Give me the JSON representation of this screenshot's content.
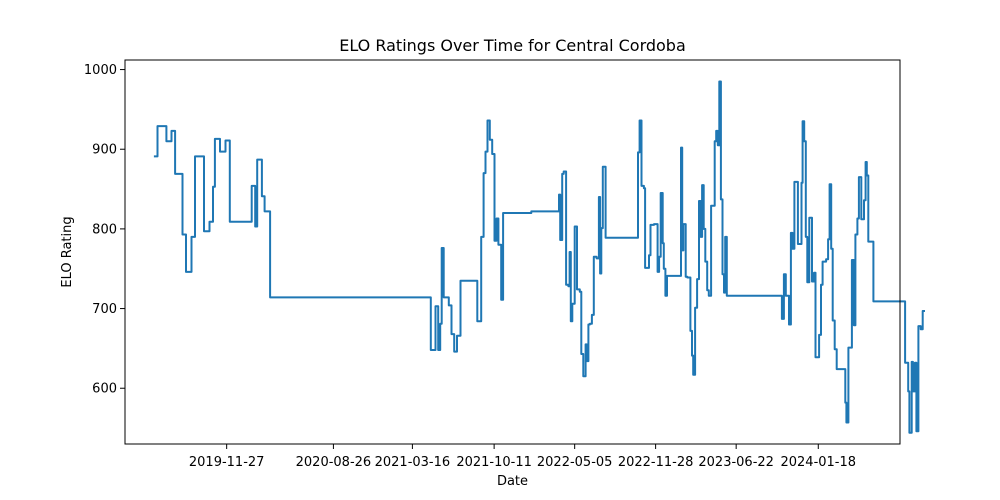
{
  "chart_data": {
    "type": "line",
    "title": "ELO Ratings Over Time for Central Cordoba",
    "xlabel": "Date",
    "ylabel": "ELO Rating",
    "x_tick_labels": [
      "2019-11-27",
      "2020-08-26",
      "2021-03-16",
      "2021-10-11",
      "2022-05-05",
      "2022-11-28",
      "2023-06-22",
      "2024-01-18"
    ],
    "y_ticks": [
      600,
      700,
      800,
      900,
      1000
    ],
    "ylim": [
      530,
      1012
    ],
    "xlim_days": [
      -260,
      1722
    ],
    "grid": false,
    "line_color": "#1f77b4",
    "series": [
      {
        "name": "Central Cordoba",
        "points": [
          [
            -186,
            891
          ],
          [
            -177,
            891
          ],
          [
            -177,
            929
          ],
          [
            -154,
            929
          ],
          [
            -154,
            910
          ],
          [
            -141,
            910
          ],
          [
            -141,
            923
          ],
          [
            -132,
            923
          ],
          [
            -132,
            869
          ],
          [
            -113,
            869
          ],
          [
            -113,
            793
          ],
          [
            -104,
            793
          ],
          [
            -104,
            746
          ],
          [
            -90,
            746
          ],
          [
            -90,
            790
          ],
          [
            -81,
            790
          ],
          [
            -81,
            891
          ],
          [
            -58,
            891
          ],
          [
            -58,
            797
          ],
          [
            -44,
            797
          ],
          [
            -44,
            809
          ],
          [
            -35,
            809
          ],
          [
            -35,
            853
          ],
          [
            -30,
            853
          ],
          [
            -30,
            913
          ],
          [
            -17,
            913
          ],
          [
            -17,
            897
          ],
          [
            -3,
            897
          ],
          [
            -3,
            911
          ],
          [
            8,
            911
          ],
          [
            8,
            809
          ],
          [
            64,
            809
          ],
          [
            64,
            854
          ],
          [
            73,
            854
          ],
          [
            73,
            803
          ],
          [
            78,
            803
          ],
          [
            78,
            887
          ],
          [
            90,
            887
          ],
          [
            90,
            841
          ],
          [
            97,
            841
          ],
          [
            97,
            822
          ],
          [
            111,
            822
          ],
          [
            111,
            714
          ],
          [
            522,
            714
          ],
          [
            522,
            648
          ],
          [
            534,
            648
          ],
          [
            534,
            703
          ],
          [
            541,
            703
          ],
          [
            541,
            648
          ],
          [
            546,
            648
          ],
          [
            546,
            681
          ],
          [
            550,
            681
          ],
          [
            550,
            776
          ],
          [
            555,
            776
          ],
          [
            555,
            714
          ],
          [
            568,
            714
          ],
          [
            568,
            704
          ],
          [
            575,
            704
          ],
          [
            575,
            668
          ],
          [
            582,
            668
          ],
          [
            582,
            646
          ],
          [
            589,
            646
          ],
          [
            589,
            666
          ],
          [
            598,
            666
          ],
          [
            598,
            735
          ],
          [
            641,
            735
          ],
          [
            641,
            684
          ],
          [
            651,
            684
          ],
          [
            651,
            790
          ],
          [
            657,
            790
          ],
          [
            657,
            870
          ],
          [
            662,
            870
          ],
          [
            662,
            897
          ],
          [
            667,
            897
          ],
          [
            667,
            936
          ],
          [
            673,
            936
          ],
          [
            673,
            912
          ],
          [
            679,
            912
          ],
          [
            679,
            894
          ],
          [
            685,
            894
          ],
          [
            685,
            785
          ],
          [
            690,
            785
          ],
          [
            690,
            813
          ],
          [
            695,
            813
          ],
          [
            695,
            780
          ],
          [
            702,
            780
          ],
          [
            702,
            711
          ],
          [
            707,
            711
          ],
          [
            707,
            820
          ],
          [
            779,
            820
          ],
          [
            779,
            822
          ],
          [
            850,
            822
          ],
          [
            850,
            843
          ],
          [
            853,
            843
          ],
          [
            853,
            786
          ],
          [
            858,
            786
          ],
          [
            858,
            869
          ],
          [
            862,
            869
          ],
          [
            862,
            872
          ],
          [
            868,
            872
          ],
          [
            868,
            730
          ],
          [
            874,
            730
          ],
          [
            874,
            728
          ],
          [
            877,
            728
          ],
          [
            877,
            771
          ],
          [
            880,
            771
          ],
          [
            880,
            684
          ],
          [
            884,
            684
          ],
          [
            884,
            706
          ],
          [
            890,
            706
          ],
          [
            890,
            803
          ],
          [
            896,
            803
          ],
          [
            896,
            724
          ],
          [
            903,
            724
          ],
          [
            903,
            721
          ],
          [
            907,
            721
          ],
          [
            907,
            643
          ],
          [
            912,
            643
          ],
          [
            912,
            615
          ],
          [
            918,
            615
          ],
          [
            918,
            655
          ],
          [
            921,
            655
          ],
          [
            921,
            634
          ],
          [
            925,
            634
          ],
          [
            925,
            680
          ],
          [
            929,
            680
          ],
          [
            929,
            681
          ],
          [
            934,
            681
          ],
          [
            934,
            692
          ],
          [
            939,
            692
          ],
          [
            939,
            765
          ],
          [
            946,
            765
          ],
          [
            946,
            763
          ],
          [
            952,
            763
          ],
          [
            952,
            840
          ],
          [
            955,
            840
          ],
          [
            955,
            744
          ],
          [
            958,
            744
          ],
          [
            958,
            801
          ],
          [
            962,
            801
          ],
          [
            962,
            878
          ],
          [
            969,
            878
          ],
          [
            969,
            789
          ],
          [
            1052,
            789
          ],
          [
            1052,
            896
          ],
          [
            1056,
            896
          ],
          [
            1056,
            936
          ],
          [
            1061,
            936
          ],
          [
            1061,
            854
          ],
          [
            1067,
            854
          ],
          [
            1067,
            851
          ],
          [
            1070,
            851
          ],
          [
            1070,
            751
          ],
          [
            1080,
            751
          ],
          [
            1080,
            767
          ],
          [
            1084,
            767
          ],
          [
            1084,
            805
          ],
          [
            1093,
            805
          ],
          [
            1093,
            806
          ],
          [
            1102,
            806
          ],
          [
            1102,
            746
          ],
          [
            1106,
            746
          ],
          [
            1106,
            765
          ],
          [
            1110,
            765
          ],
          [
            1110,
            845
          ],
          [
            1115,
            845
          ],
          [
            1115,
            782
          ],
          [
            1118,
            782
          ],
          [
            1118,
            750
          ],
          [
            1122,
            750
          ],
          [
            1122,
            716
          ],
          [
            1126,
            716
          ],
          [
            1126,
            741
          ],
          [
            1162,
            741
          ],
          [
            1162,
            902
          ],
          [
            1165,
            902
          ],
          [
            1165,
            773
          ],
          [
            1168,
            773
          ],
          [
            1168,
            806
          ],
          [
            1174,
            806
          ],
          [
            1174,
            740
          ],
          [
            1178,
            740
          ],
          [
            1178,
            739
          ],
          [
            1186,
            739
          ],
          [
            1186,
            672
          ],
          [
            1190,
            672
          ],
          [
            1190,
            641
          ],
          [
            1193,
            641
          ],
          [
            1193,
            617
          ],
          [
            1198,
            617
          ],
          [
            1198,
            701
          ],
          [
            1203,
            701
          ],
          [
            1203,
            737
          ],
          [
            1208,
            737
          ],
          [
            1208,
            835
          ],
          [
            1212,
            835
          ],
          [
            1212,
            790
          ],
          [
            1216,
            790
          ],
          [
            1216,
            855
          ],
          [
            1220,
            855
          ],
          [
            1220,
            800
          ],
          [
            1224,
            800
          ],
          [
            1224,
            759
          ],
          [
            1229,
            759
          ],
          [
            1229,
            723
          ],
          [
            1233,
            723
          ],
          [
            1233,
            716
          ],
          [
            1239,
            716
          ],
          [
            1239,
            829
          ],
          [
            1248,
            829
          ],
          [
            1248,
            910
          ],
          [
            1252,
            910
          ],
          [
            1252,
            923
          ],
          [
            1256,
            923
          ],
          [
            1256,
            905
          ],
          [
            1260,
            905
          ],
          [
            1260,
            985
          ],
          [
            1264,
            985
          ],
          [
            1264,
            837
          ],
          [
            1268,
            837
          ],
          [
            1268,
            743
          ],
          [
            1272,
            743
          ],
          [
            1272,
            720
          ],
          [
            1275,
            720
          ],
          [
            1275,
            790
          ],
          [
            1279,
            790
          ],
          [
            1279,
            716
          ],
          [
            1420,
            716
          ],
          [
            1420,
            687
          ],
          [
            1425,
            687
          ],
          [
            1425,
            743
          ],
          [
            1430,
            743
          ],
          [
            1430,
            716
          ],
          [
            1438,
            716
          ],
          [
            1438,
            680
          ],
          [
            1443,
            680
          ],
          [
            1443,
            795
          ],
          [
            1447,
            795
          ],
          [
            1447,
            775
          ],
          [
            1452,
            775
          ],
          [
            1452,
            859
          ],
          [
            1461,
            859
          ],
          [
            1461,
            781
          ],
          [
            1470,
            781
          ],
          [
            1470,
            858
          ],
          [
            1473,
            858
          ],
          [
            1473,
            935
          ],
          [
            1477,
            935
          ],
          [
            1477,
            910
          ],
          [
            1481,
            910
          ],
          [
            1481,
            790
          ],
          [
            1485,
            790
          ],
          [
            1485,
            733
          ],
          [
            1490,
            733
          ],
          [
            1490,
            814
          ],
          [
            1497,
            814
          ],
          [
            1497,
            734
          ],
          [
            1502,
            734
          ],
          [
            1502,
            745
          ],
          [
            1506,
            745
          ],
          [
            1506,
            639
          ],
          [
            1515,
            639
          ],
          [
            1515,
            667
          ],
          [
            1520,
            667
          ],
          [
            1520,
            730
          ],
          [
            1524,
            730
          ],
          [
            1524,
            759
          ],
          [
            1533,
            759
          ],
          [
            1533,
            762
          ],
          [
            1538,
            762
          ],
          [
            1538,
            787
          ],
          [
            1542,
            787
          ],
          [
            1542,
            856
          ],
          [
            1546,
            856
          ],
          [
            1546,
            775
          ],
          [
            1550,
            775
          ],
          [
            1550,
            685
          ],
          [
            1555,
            685
          ],
          [
            1555,
            649
          ],
          [
            1560,
            649
          ],
          [
            1560,
            624
          ],
          [
            1582,
            624
          ],
          [
            1582,
            582
          ],
          [
            1585,
            582
          ],
          [
            1585,
            557
          ],
          [
            1590,
            557
          ],
          [
            1590,
            651
          ],
          [
            1599,
            651
          ],
          [
            1599,
            761
          ],
          [
            1604,
            761
          ],
          [
            1604,
            679
          ],
          [
            1608,
            679
          ],
          [
            1608,
            793
          ],
          [
            1613,
            793
          ],
          [
            1613,
            813
          ],
          [
            1617,
            813
          ],
          [
            1617,
            865
          ],
          [
            1623,
            865
          ],
          [
            1623,
            812
          ],
          [
            1630,
            812
          ],
          [
            1630,
            836
          ],
          [
            1634,
            836
          ],
          [
            1634,
            884
          ],
          [
            1637,
            884
          ],
          [
            1637,
            867
          ],
          [
            1641,
            867
          ],
          [
            1641,
            784
          ],
          [
            1654,
            784
          ],
          [
            1654,
            709
          ],
          [
            1735,
            709
          ],
          [
            1735,
            632
          ],
          [
            1743,
            632
          ],
          [
            1743,
            596
          ],
          [
            1746,
            596
          ],
          [
            1746,
            544
          ],
          [
            1752,
            544
          ],
          [
            1752,
            633
          ],
          [
            1755,
            633
          ],
          [
            1755,
            596
          ],
          [
            1760,
            596
          ],
          [
            1760,
            632
          ],
          [
            1764,
            632
          ],
          [
            1764,
            546
          ],
          [
            1769,
            546
          ],
          [
            1769,
            678
          ],
          [
            1775,
            678
          ],
          [
            1775,
            674
          ],
          [
            1780,
            674
          ],
          [
            1780,
            697
          ],
          [
            1786,
            697
          ]
        ]
      }
    ]
  }
}
